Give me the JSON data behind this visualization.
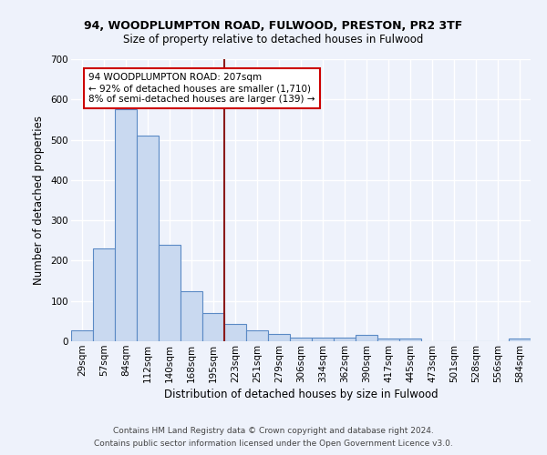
{
  "title1": "94, WOODPLUMPTON ROAD, FULWOOD, PRESTON, PR2 3TF",
  "title2": "Size of property relative to detached houses in Fulwood",
  "xlabel": "Distribution of detached houses by size in Fulwood",
  "ylabel": "Number of detached properties",
  "categories": [
    "29sqm",
    "57sqm",
    "84sqm",
    "112sqm",
    "140sqm",
    "168sqm",
    "195sqm",
    "223sqm",
    "251sqm",
    "279sqm",
    "306sqm",
    "334sqm",
    "362sqm",
    "390sqm",
    "417sqm",
    "445sqm",
    "473sqm",
    "501sqm",
    "528sqm",
    "556sqm",
    "584sqm"
  ],
  "values": [
    27,
    230,
    575,
    510,
    240,
    125,
    70,
    43,
    27,
    18,
    10,
    10,
    10,
    15,
    7,
    6,
    0,
    0,
    0,
    0,
    6
  ],
  "bar_color": "#c9d9f0",
  "bar_edge_color": "#5b8ac5",
  "vline_x_index": 7,
  "vline_color": "#8b1a1a",
  "annotation_lines": [
    "94 WOODPLUMPTON ROAD: 207sqm",
    "← 92% of detached houses are smaller (1,710)",
    "8% of semi-detached houses are larger (139) →"
  ],
  "ylim": [
    0,
    700
  ],
  "yticks": [
    0,
    100,
    200,
    300,
    400,
    500,
    600,
    700
  ],
  "footer1": "Contains HM Land Registry data © Crown copyright and database right 2024.",
  "footer2": "Contains public sector information licensed under the Open Government Licence v3.0.",
  "bg_color": "#eef2fb",
  "plot_bg_color": "#eef2fb",
  "grid_color": "#ffffff",
  "title1_fontsize": 9,
  "title2_fontsize": 8.5,
  "xlabel_fontsize": 8.5,
  "ylabel_fontsize": 8.5,
  "tick_fontsize": 7.5,
  "footer_fontsize": 6.5,
  "ann_fontsize": 7.5
}
